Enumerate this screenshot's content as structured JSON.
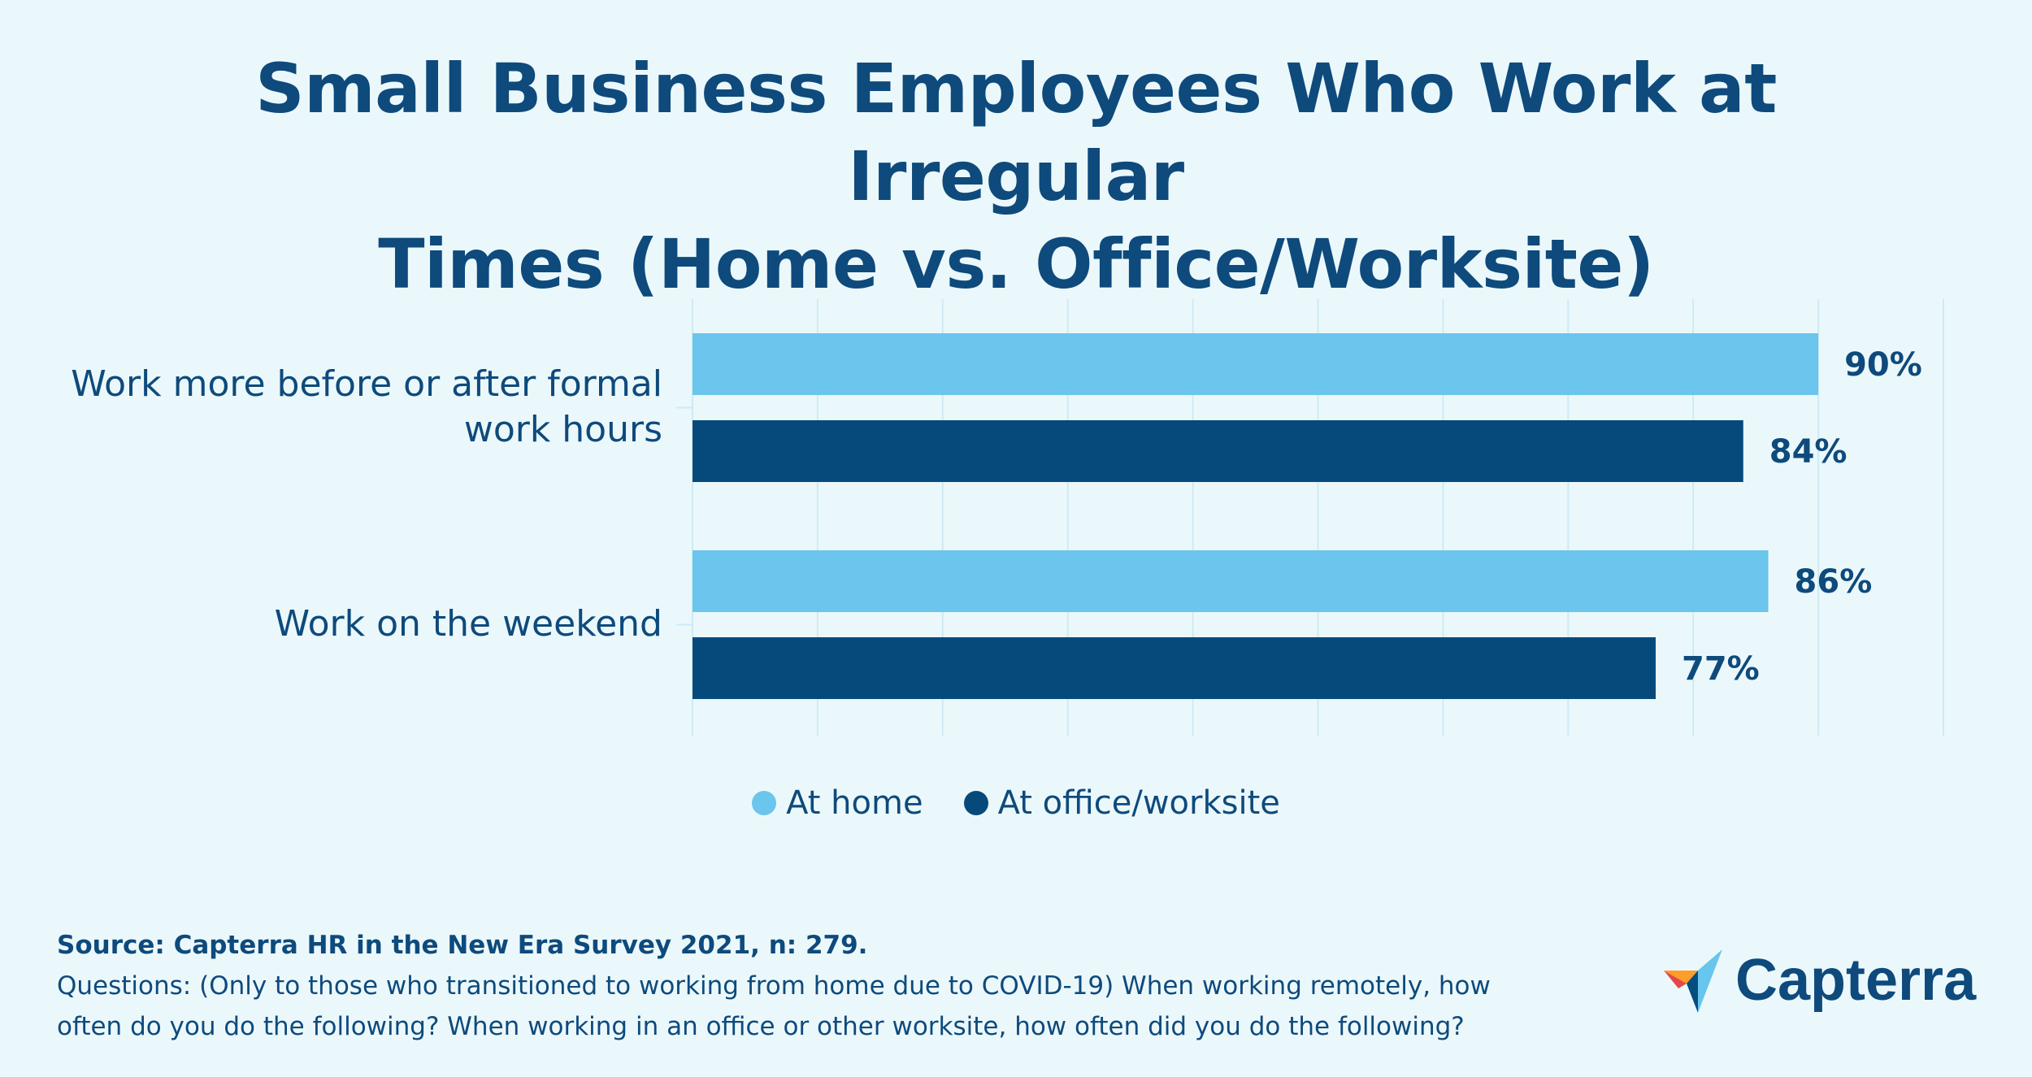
{
  "title_line1": "Small Business Employees Who Work at Irregular",
  "title_line2": "Times (Home vs. Office/Worksite)",
  "chart_data": {
    "type": "bar",
    "orientation": "horizontal",
    "categories": [
      "Work more before or after formal work hours",
      "Work on the weekend"
    ],
    "category_label_lines": [
      [
        "Work more before or after formal",
        "work hours"
      ],
      [
        "Work on the weekend"
      ]
    ],
    "series": [
      {
        "name": "At home",
        "values": [
          90,
          86
        ],
        "color": "#6bc5ed"
      },
      {
        "name": "At office/worksite",
        "values": [
          84,
          77
        ],
        "color": "#064a7c"
      }
    ],
    "value_labels": [
      [
        "90%",
        "84%"
      ],
      [
        "86%",
        "77%"
      ]
    ],
    "xlim": [
      0,
      100
    ],
    "grid": true,
    "legend_position": "bottom-center"
  },
  "legend": [
    "At home",
    "At office/worksite"
  ],
  "source_title": "Source: Capterra HR in the New Era Survey 2021, n: 279.",
  "source_text_line1": "Questions: (Only to those who transitioned to working from home due to COVID-19) When working remotely, how",
  "source_text_line2": "often do you do the following? When working in an office or other worksite, how often did you do the following?",
  "logo_text": "Capterra",
  "colors": {
    "background": "#ebf8fb",
    "title": "#0e4a7c",
    "at_home": "#6bc5ed",
    "at_office": "#064a7c",
    "grid": "#cfeaf4"
  }
}
